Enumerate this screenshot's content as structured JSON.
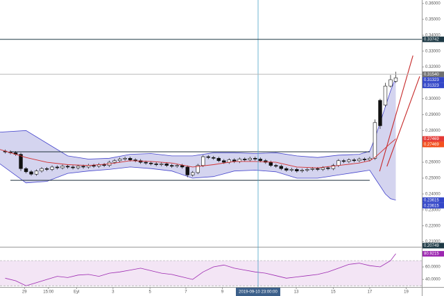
{
  "chart_data": {
    "type": "candlestick",
    "open": [
      0.267,
      0.2665,
      0.266,
      0.265,
      0.256,
      0.254,
      0.2525,
      0.2545,
      0.256,
      0.2555,
      0.257,
      0.2565,
      0.2575,
      0.257,
      0.2565,
      0.2575,
      0.257,
      0.258,
      0.2575,
      0.2585,
      0.258,
      0.26,
      0.261,
      0.262,
      0.2625,
      0.2615,
      0.261,
      0.26,
      0.2595,
      0.259,
      0.2585,
      0.259,
      0.258,
      0.2575,
      0.258,
      0.257,
      0.252,
      0.2535,
      0.258,
      0.2635,
      0.263,
      0.2625,
      0.261,
      0.26,
      0.2615,
      0.2605,
      0.262,
      0.2615,
      0.2625,
      0.262,
      0.261,
      0.26,
      0.258,
      0.2575,
      0.256,
      0.255,
      0.2555,
      0.2545,
      0.255,
      0.2555,
      0.256,
      0.2555,
      0.2565,
      0.256,
      0.258,
      0.261,
      0.2605,
      0.2615,
      0.261,
      0.262,
      0.2615,
      0.2625,
      0.299,
      0.296,
      0.308,
      0.311
    ],
    "high": [
      0.268,
      0.2675,
      0.267,
      0.266,
      0.257,
      0.255,
      0.2555,
      0.257,
      0.257,
      0.258,
      0.258,
      0.2585,
      0.2585,
      0.258,
      0.2585,
      0.2585,
      0.259,
      0.259,
      0.2595,
      0.2595,
      0.261,
      0.262,
      0.263,
      0.2635,
      0.2635,
      0.2625,
      0.262,
      0.261,
      0.2605,
      0.26,
      0.26,
      0.26,
      0.259,
      0.259,
      0.259,
      0.258,
      0.2545,
      0.259,
      0.2645,
      0.2645,
      0.264,
      0.2635,
      0.262,
      0.2625,
      0.2625,
      0.263,
      0.263,
      0.2635,
      0.2635,
      0.263,
      0.262,
      0.261,
      0.259,
      0.2585,
      0.257,
      0.2565,
      0.2565,
      0.256,
      0.2565,
      0.257,
      0.257,
      0.2575,
      0.2575,
      0.259,
      0.262,
      0.262,
      0.2625,
      0.2625,
      0.263,
      0.263,
      0.2635,
      0.287,
      0.3,
      0.31,
      0.315,
      0.317
    ],
    "low": [
      0.2655,
      0.265,
      0.264,
      0.2545,
      0.253,
      0.2515,
      0.2515,
      0.2535,
      0.2545,
      0.2545,
      0.2555,
      0.2555,
      0.256,
      0.2555,
      0.2555,
      0.256,
      0.256,
      0.2565,
      0.2565,
      0.257,
      0.257,
      0.259,
      0.26,
      0.261,
      0.2605,
      0.26,
      0.259,
      0.2585,
      0.258,
      0.2575,
      0.2575,
      0.257,
      0.2565,
      0.2565,
      0.256,
      0.2505,
      0.251,
      0.2525,
      0.257,
      0.262,
      0.2615,
      0.26,
      0.259,
      0.259,
      0.2595,
      0.2595,
      0.2605,
      0.2605,
      0.261,
      0.26,
      0.259,
      0.257,
      0.2565,
      0.255,
      0.254,
      0.254,
      0.2535,
      0.2535,
      0.254,
      0.2545,
      0.2545,
      0.2545,
      0.255,
      0.255,
      0.257,
      0.2595,
      0.2595,
      0.26,
      0.26,
      0.2605,
      0.2605,
      0.2615,
      0.281,
      0.295,
      0.307,
      0.31
    ],
    "close": [
      0.2665,
      0.266,
      0.265,
      0.256,
      0.254,
      0.2525,
      0.2545,
      0.256,
      0.2555,
      0.257,
      0.2565,
      0.2575,
      0.257,
      0.2565,
      0.2575,
      0.257,
      0.258,
      0.2575,
      0.2585,
      0.258,
      0.26,
      0.261,
      0.262,
      0.2625,
      0.2615,
      0.261,
      0.26,
      0.2595,
      0.259,
      0.2585,
      0.259,
      0.258,
      0.2575,
      0.258,
      0.257,
      0.252,
      0.2535,
      0.258,
      0.2635,
      0.263,
      0.2625,
      0.261,
      0.26,
      0.2615,
      0.2605,
      0.262,
      0.2615,
      0.2625,
      0.262,
      0.261,
      0.26,
      0.258,
      0.2575,
      0.256,
      0.255,
      0.2555,
      0.2545,
      0.255,
      0.2555,
      0.256,
      0.2555,
      0.2565,
      0.256,
      0.258,
      0.261,
      0.2605,
      0.2615,
      0.261,
      0.262,
      0.2615,
      0.2625,
      0.285,
      0.283,
      0.308,
      0.312,
      0.3132
    ],
    "colors": {
      "up": "#ffffff",
      "down": "#111111",
      "outline": "#111111"
    },
    "xlim": [
      -1,
      80
    ],
    "xticks": [
      {
        "value": 3.7,
        "label": "29"
      },
      {
        "value": 8.3,
        "label": "15:00"
      },
      {
        "value": 13.7,
        "label": "Eyl"
      },
      {
        "value": 20.7,
        "label": "3"
      },
      {
        "value": 27.8,
        "label": "5"
      },
      {
        "value": 34.7,
        "label": "7"
      },
      {
        "value": 41.7,
        "label": "9"
      },
      {
        "value": 55.9,
        "label": "13"
      },
      {
        "value": 63,
        "label": "15"
      },
      {
        "value": 70,
        "label": "17"
      },
      {
        "value": 77,
        "label": "19"
      }
    ],
    "ylim": [
      0.2072,
      0.3622
    ],
    "yticks": [
      {
        "value": 0.36,
        "label": "0.36000"
      },
      {
        "value": 0.35,
        "label": "0.35000"
      },
      {
        "value": 0.34,
        "label": "0.34000"
      },
      {
        "value": 0.33,
        "label": "0.33000"
      },
      {
        "value": 0.32,
        "label": "0.32000"
      },
      {
        "value": 0.31,
        "label": "0.31000"
      },
      {
        "value": 0.3,
        "label": "0.30000"
      },
      {
        "value": 0.29,
        "label": "0.29000"
      },
      {
        "value": 0.28,
        "label": "0.28000"
      },
      {
        "value": 0.27,
        "label": "0.27000"
      },
      {
        "value": 0.26,
        "label": "0.26000"
      },
      {
        "value": 0.25,
        "label": "0.25000"
      },
      {
        "value": 0.24,
        "label": "0.24000"
      },
      {
        "value": 0.23,
        "label": "0.23000"
      },
      {
        "value": 0.22,
        "label": "0.22000"
      },
      {
        "value": 0.21,
        "label": "0.21000"
      }
    ],
    "bollinger": {
      "x": [
        -1,
        4,
        8,
        12,
        16,
        20,
        24,
        28,
        32,
        36,
        40,
        44,
        48,
        52,
        56,
        60,
        64,
        68,
        70,
        71,
        72,
        73,
        74,
        75
      ],
      "upper": [
        0.279,
        0.28,
        0.272,
        0.264,
        0.262,
        0.2625,
        0.265,
        0.2655,
        0.264,
        0.264,
        0.266,
        0.266,
        0.2655,
        0.266,
        0.264,
        0.263,
        0.2645,
        0.265,
        0.267,
        0.275,
        0.285,
        0.295,
        0.305,
        0.3132
      ],
      "middle": [
        0.268,
        0.263,
        0.26,
        0.2585,
        0.258,
        0.259,
        0.261,
        0.2605,
        0.2595,
        0.257,
        0.2585,
        0.2605,
        0.2605,
        0.26,
        0.257,
        0.2565,
        0.258,
        0.2595,
        0.261,
        0.263,
        0.266,
        0.269,
        0.272,
        0.2747
      ],
      "lower": [
        0.259,
        0.247,
        0.248,
        0.253,
        0.2545,
        0.2555,
        0.257,
        0.256,
        0.2545,
        0.25,
        0.251,
        0.2545,
        0.255,
        0.254,
        0.25,
        0.25,
        0.252,
        0.254,
        0.255,
        0.25,
        0.245,
        0.24,
        0.237,
        0.2362
      ],
      "line_color": "#4444cc",
      "fill": "#c5c5ea",
      "middle_color": "#d32f2f"
    },
    "box": {
      "x": [
        1.0,
        70.0
      ],
      "top": 0.2666,
      "bottom": 0.2486,
      "color": "#1e2f3a"
    },
    "trend_lines": [
      {
        "x": [
          71.9,
          78.3
        ],
        "y": [
          0.2543,
          0.3272
        ],
        "color": "#c62828"
      },
      {
        "x": [
          73.3,
          79.6
        ],
        "y": [
          0.2574,
          0.3141
        ],
        "color": "#c62828"
      }
    ],
    "levels": [
      {
        "value": 0.33742,
        "label": "0.33742",
        "bg": "#1e3a46",
        "line": "#1e3a46"
      },
      {
        "value": 0.3154,
        "label": "0.31540",
        "bg": "#707070",
        "line": "#b8b8b8"
      },
      {
        "value": 0.31323,
        "label": "0.31323",
        "bg": "#3346c8"
      },
      {
        "value": 0.31323,
        "label": "0.31323",
        "bg": "#3346c8"
      },
      {
        "value": 0.27469,
        "label": "0.27469",
        "bg": "#e53935"
      },
      {
        "value": 0.27469,
        "label": "0.27469",
        "bg": "#f4511e"
      },
      {
        "value": 0.23615,
        "label": "0.23615",
        "bg": "#3346c8"
      },
      {
        "value": 0.23615,
        "label": "0.23615",
        "bg": "#3346c8"
      },
      {
        "value": 0.20749,
        "label": "0.20749",
        "bg": "#1e3a46"
      }
    ],
    "crosshair": {
      "x": 48.56,
      "label": "2019-09-10 23:00:00",
      "color": "#4aa3c8"
    },
    "rsi": {
      "x": [
        0,
        2,
        4,
        6,
        8,
        10,
        12,
        14,
        16,
        18,
        20,
        22,
        24,
        26,
        28,
        30,
        32,
        34,
        36,
        38,
        40,
        42,
        44,
        46,
        48,
        50,
        52,
        54,
        56,
        58,
        60,
        62,
        64,
        66,
        68,
        70,
        72,
        74,
        75
      ],
      "values": [
        42,
        38,
        30,
        35,
        40,
        45,
        43,
        47,
        48,
        45,
        50,
        52,
        55,
        58,
        54,
        50,
        48,
        44,
        40,
        52,
        60,
        63,
        58,
        55,
        52,
        50,
        46,
        42,
        44,
        46,
        48,
        52,
        58,
        64,
        66,
        62,
        60,
        70,
        81
      ],
      "ylim": [
        28,
        91
      ],
      "yticks": [
        {
          "value": 60,
          "label": "60.0000"
        },
        {
          "value": 40,
          "label": "40.0000"
        }
      ],
      "band": [
        30,
        70
      ],
      "color": "#9c27b0",
      "band_fill": "#f3e5f5",
      "last": {
        "value": 80.9215,
        "label": "80.9215"
      }
    }
  }
}
